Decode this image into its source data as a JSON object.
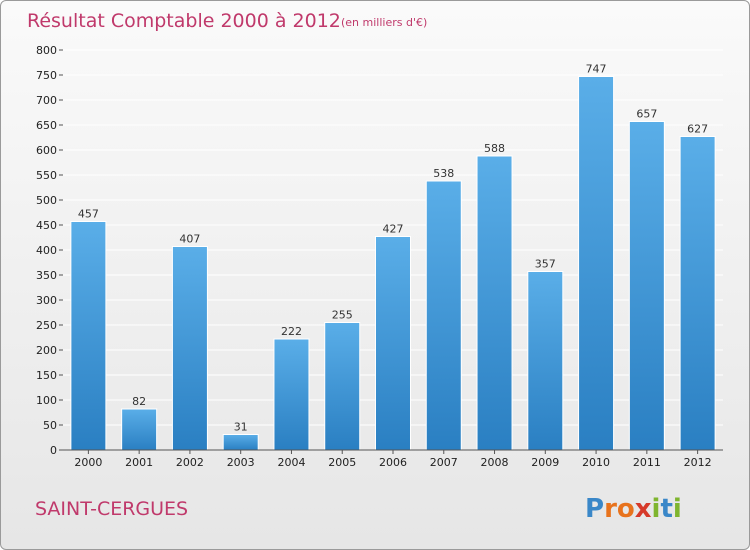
{
  "chart_data": {
    "type": "bar",
    "title": "Résultat Comptable 2000 à 2012",
    "unit": "(en milliers d'€)",
    "categories": [
      "2000",
      "2001",
      "2002",
      "2003",
      "2004",
      "2005",
      "2006",
      "2007",
      "2008",
      "2009",
      "2010",
      "2011",
      "2012"
    ],
    "values": [
      457,
      82,
      407,
      31,
      222,
      255,
      427,
      538,
      588,
      357,
      747,
      657,
      627
    ],
    "ylim": [
      0,
      800
    ],
    "yticks": [
      0,
      50,
      100,
      150,
      200,
      250,
      300,
      350,
      400,
      450,
      500,
      550,
      600,
      650,
      700,
      750,
      800
    ],
    "xlabel": "",
    "ylabel": "",
    "grid": true,
    "bar_color_top": "#5aaee8",
    "bar_color_bottom": "#2a7fc2"
  },
  "commune": "SAINT-CERGUES",
  "logo": {
    "letters": [
      "P",
      "r",
      "o",
      "x",
      "i",
      "t",
      "i"
    ],
    "colors": [
      "#3a87c8",
      "#e8731d",
      "#e8731d",
      "#d63a2a",
      "#7fb52f",
      "#3a87c8",
      "#7fb52f"
    ]
  }
}
